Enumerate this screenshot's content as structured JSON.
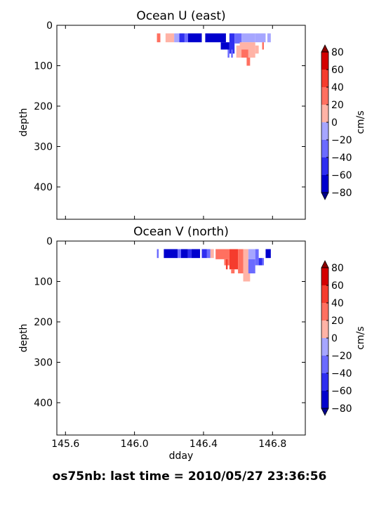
{
  "figure": {
    "suptitle": "os75nb: last time = 2010/05/27 23:36:56"
  },
  "colorbar": {
    "label": "cm/s",
    "levels": [
      -80,
      -60,
      -40,
      -20,
      0,
      20,
      40,
      60,
      80
    ],
    "tick_labels": [
      "−80",
      "−60",
      "−40",
      "−20",
      "0",
      "20",
      "40",
      "60",
      "80"
    ],
    "colors": [
      "#0000cd",
      "#2e2ef0",
      "#6b6bff",
      "#a6a6ff",
      "#ffb3a6",
      "#ff7060",
      "#f53c2d",
      "#d40000"
    ],
    "under_color": "#00008b",
    "over_color": "#8b0000"
  },
  "chart_data": [
    {
      "type": "heatmap",
      "title": "Ocean U (east)",
      "xlabel": "",
      "ylabel": "depth",
      "xlim": [
        145.55,
        146.99
      ],
      "ylim": [
        480,
        0
      ],
      "yticks": [
        0,
        100,
        200,
        300,
        400
      ],
      "ytick_labels": [
        "0",
        "100",
        "200",
        "300",
        "400"
      ],
      "xticks": [
        145.6,
        146.0,
        146.4,
        146.8
      ],
      "xtick_labels": [],
      "cells": [
        {
          "x0": 146.13,
          "x1": 146.15,
          "y0": 20,
          "y1": 42,
          "value": 30
        },
        {
          "x0": 146.18,
          "x1": 146.23,
          "y0": 20,
          "y1": 42,
          "value": 10
        },
        {
          "x0": 146.23,
          "x1": 146.26,
          "y0": 20,
          "y1": 42,
          "value": -10
        },
        {
          "x0": 146.26,
          "x1": 146.29,
          "y0": 20,
          "y1": 42,
          "value": -50
        },
        {
          "x0": 146.29,
          "x1": 146.31,
          "y0": 20,
          "y1": 42,
          "value": -30
        },
        {
          "x0": 146.31,
          "x1": 146.39,
          "y0": 20,
          "y1": 42,
          "value": -70
        },
        {
          "x0": 146.41,
          "x1": 146.53,
          "y0": 20,
          "y1": 42,
          "value": -70
        },
        {
          "x0": 146.5,
          "x1": 146.55,
          "y0": 42,
          "y1": 60,
          "value": -70
        },
        {
          "x0": 146.55,
          "x1": 146.58,
          "y0": 20,
          "y1": 70,
          "value": -50
        },
        {
          "x0": 146.58,
          "x1": 146.62,
          "y0": 20,
          "y1": 45,
          "value": -30
        },
        {
          "x0": 146.62,
          "x1": 146.7,
          "y0": 20,
          "y1": 42,
          "value": -10
        },
        {
          "x0": 146.7,
          "x1": 146.76,
          "y0": 20,
          "y1": 42,
          "value": -10
        },
        {
          "x0": 146.77,
          "x1": 146.79,
          "y0": 20,
          "y1": 42,
          "value": -10
        },
        {
          "x0": 146.61,
          "x1": 146.7,
          "y0": 42,
          "y1": 60,
          "value": 10
        },
        {
          "x0": 146.59,
          "x1": 146.62,
          "y0": 50,
          "y1": 80,
          "value": 10
        },
        {
          "x0": 146.62,
          "x1": 146.66,
          "y0": 60,
          "y1": 80,
          "value": 30
        },
        {
          "x0": 146.66,
          "x1": 146.7,
          "y0": 60,
          "y1": 80,
          "value": 10
        },
        {
          "x0": 146.65,
          "x1": 146.67,
          "y0": 80,
          "y1": 100,
          "value": 30
        },
        {
          "x0": 146.7,
          "x1": 146.72,
          "y0": 50,
          "y1": 70,
          "value": 10
        },
        {
          "x0": 146.74,
          "x1": 146.75,
          "y0": 42,
          "y1": 60,
          "value": 30
        },
        {
          "x0": 146.56,
          "x1": 146.57,
          "y0": 60,
          "y1": 80,
          "value": -30
        },
        {
          "x0": 146.54,
          "x1": 146.55,
          "y0": 60,
          "y1": 80,
          "value": -30
        }
      ]
    },
    {
      "type": "heatmap",
      "title": "Ocean V (north)",
      "xlabel": "dday",
      "ylabel": "depth",
      "xlim": [
        145.55,
        146.99
      ],
      "ylim": [
        480,
        0
      ],
      "yticks": [
        0,
        100,
        200,
        300,
        400
      ],
      "ytick_labels": [
        "0",
        "100",
        "200",
        "300",
        "400"
      ],
      "xticks": [
        145.6,
        146.0,
        146.4,
        146.8
      ],
      "xtick_labels": [
        "145.6",
        "146.0",
        "146.4",
        "146.8"
      ],
      "cells": [
        {
          "x0": 146.13,
          "x1": 146.14,
          "y0": 20,
          "y1": 42,
          "value": -30
        },
        {
          "x0": 146.17,
          "x1": 146.25,
          "y0": 20,
          "y1": 42,
          "value": -70
        },
        {
          "x0": 146.25,
          "x1": 146.27,
          "y0": 20,
          "y1": 42,
          "value": -30
        },
        {
          "x0": 146.27,
          "x1": 146.31,
          "y0": 20,
          "y1": 42,
          "value": -70
        },
        {
          "x0": 146.31,
          "x1": 146.33,
          "y0": 20,
          "y1": 42,
          "value": -50
        },
        {
          "x0": 146.33,
          "x1": 146.38,
          "y0": 20,
          "y1": 42,
          "value": -70
        },
        {
          "x0": 146.39,
          "x1": 146.42,
          "y0": 20,
          "y1": 42,
          "value": -50
        },
        {
          "x0": 146.42,
          "x1": 146.44,
          "y0": 20,
          "y1": 42,
          "value": -30
        },
        {
          "x0": 146.44,
          "x1": 146.46,
          "y0": 20,
          "y1": 42,
          "value": 10
        },
        {
          "x0": 146.47,
          "x1": 146.55,
          "y0": 20,
          "y1": 45,
          "value": 30
        },
        {
          "x0": 146.52,
          "x1": 146.55,
          "y0": 45,
          "y1": 60,
          "value": 30
        },
        {
          "x0": 146.55,
          "x1": 146.6,
          "y0": 20,
          "y1": 70,
          "value": 50
        },
        {
          "x0": 146.56,
          "x1": 146.58,
          "y0": 70,
          "y1": 80,
          "value": 30
        },
        {
          "x0": 146.6,
          "x1": 146.63,
          "y0": 20,
          "y1": 80,
          "value": 30
        },
        {
          "x0": 146.63,
          "x1": 146.66,
          "y0": 20,
          "y1": 60,
          "value": 10
        },
        {
          "x0": 146.63,
          "x1": 146.67,
          "y0": 60,
          "y1": 100,
          "value": 10
        },
        {
          "x0": 146.66,
          "x1": 146.7,
          "y0": 20,
          "y1": 45,
          "value": -10
        },
        {
          "x0": 146.66,
          "x1": 146.7,
          "y0": 45,
          "y1": 80,
          "value": -30
        },
        {
          "x0": 146.7,
          "x1": 146.72,
          "y0": 20,
          "y1": 60,
          "value": -30
        },
        {
          "x0": 146.72,
          "x1": 146.74,
          "y0": 42,
          "y1": 60,
          "value": -50
        },
        {
          "x0": 146.76,
          "x1": 146.79,
          "y0": 20,
          "y1": 42,
          "value": -70
        },
        {
          "x0": 146.74,
          "x1": 146.75,
          "y0": 42,
          "y1": 60,
          "value": -30
        },
        {
          "x0": 146.53,
          "x1": 146.54,
          "y0": 45,
          "y1": 70,
          "value": 50
        }
      ]
    }
  ]
}
